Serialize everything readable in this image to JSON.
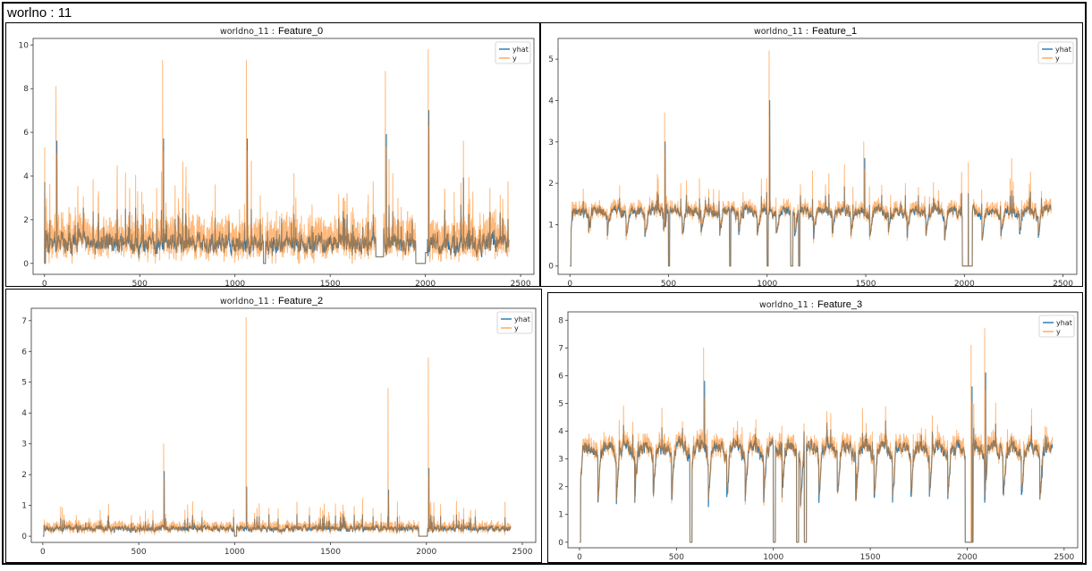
{
  "page": {
    "title": "worlno : 11"
  },
  "colors": {
    "yhat": "#1f77b4",
    "y": "#ff7f0e",
    "blend": "#8c7660"
  },
  "chart_data": [
    {
      "type": "line",
      "title_prefix": "worldno_11 :",
      "title_feature": "Feature_0",
      "xlim": [
        -60,
        2570
      ],
      "ylim": [
        -0.5,
        10.3
      ],
      "x_ticks": [
        "0",
        "500",
        "1000",
        "1500",
        "2000",
        "2500"
      ],
      "x_tick_values": [
        0,
        500,
        1000,
        1500,
        2000,
        2500
      ],
      "y_ticks": [
        "0",
        "2",
        "4",
        "6",
        "8",
        "10"
      ],
      "y_tick_values": [
        0,
        2,
        4,
        6,
        8,
        10
      ],
      "legend": [
        "yhat",
        "y"
      ],
      "legend_loc": "upper right",
      "n_points": 2440,
      "profile": {
        "base": 0.9,
        "noise": 0.9,
        "y_extra": 0.8,
        "spike_prob": 0.05,
        "spike_scale": 3.0,
        "dips": [
          [
            2000,
            2010,
            0.5
          ],
          [
            1150,
            1160,
            0
          ],
          [
            1740,
            1780,
            0.3
          ]
        ],
        "flat_zero": [
          [
            0,
            5
          ],
          [
            1950,
            2000
          ]
        ],
        "peaks": [
          [
            1,
            5.3
          ],
          [
            60,
            8.1
          ],
          [
            65,
            5.6
          ],
          [
            620,
            9.3
          ],
          [
            625,
            5.7
          ],
          [
            1060,
            9.3
          ],
          [
            1065,
            5.7
          ],
          [
            1790,
            8.8
          ],
          [
            1795,
            5.9
          ],
          [
            2015,
            9.8
          ],
          [
            2018,
            7.0
          ],
          [
            2200,
            5.6
          ]
        ],
        "seed": 11
      }
    },
    {
      "type": "line",
      "title_prefix": "worldno_11 :",
      "title_feature": "Feature_1",
      "xlim": [
        -60,
        2570
      ],
      "ylim": [
        -0.2,
        5.5
      ],
      "x_ticks": [
        "0",
        "500",
        "1000",
        "1500",
        "2000",
        "2500"
      ],
      "x_tick_values": [
        0,
        500,
        1000,
        1500,
        2000,
        2500
      ],
      "y_ticks": [
        "0",
        "1",
        "2",
        "3",
        "4",
        "5"
      ],
      "y_tick_values": [
        0,
        1,
        2,
        3,
        4,
        5
      ],
      "legend": [
        "yhat",
        "y"
      ],
      "legend_loc": "upper right",
      "n_points": 2440,
      "profile": {
        "base": 1.2,
        "noise": 0.25,
        "y_extra": 0.15,
        "spike_prob": 0.02,
        "spike_scale": 0.8,
        "periodic": 0.5,
        "period": 95,
        "dips": [
          [
            500,
            505,
            0
          ],
          [
            810,
            815,
            0
          ],
          [
            1000,
            1005,
            0
          ],
          [
            1120,
            1130,
            0
          ],
          [
            1160,
            1165,
            0
          ]
        ],
        "flat_zero": [
          [
            0,
            5
          ],
          [
            1990,
            2040
          ]
        ],
        "peaks": [
          [
            480,
            3.7
          ],
          [
            483,
            3.0
          ],
          [
            1010,
            5.2
          ],
          [
            1013,
            4.0
          ],
          [
            1230,
            2.3
          ],
          [
            1490,
            3.0
          ],
          [
            1495,
            2.6
          ],
          [
            2020,
            2.5
          ],
          [
            2240,
            2.6
          ]
        ],
        "seed": 21
      }
    },
    {
      "type": "line",
      "title_prefix": "worldno_11 :",
      "title_feature": "Feature_2",
      "xlim": [
        -60,
        2570
      ],
      "ylim": [
        -0.2,
        7.4
      ],
      "x_ticks": [
        "0",
        "500",
        "1000",
        "1500",
        "2000",
        "2500"
      ],
      "x_tick_values": [
        0,
        500,
        1000,
        1500,
        2000,
        2500
      ],
      "y_ticks": [
        "0",
        "1",
        "2",
        "3",
        "4",
        "5",
        "6",
        "7"
      ],
      "y_tick_values": [
        0,
        1,
        2,
        3,
        4,
        5,
        6,
        7
      ],
      "legend": [
        "yhat",
        "y"
      ],
      "legend_loc": "upper right",
      "n_points": 2440,
      "profile": {
        "base": 0.25,
        "noise": 0.2,
        "y_extra": 0.15,
        "spike_prob": 0.04,
        "spike_scale": 0.8,
        "dips": [
          [
            1000,
            1010,
            0
          ]
        ],
        "flat_zero": [
          [
            0,
            5
          ],
          [
            1960,
            2005
          ]
        ],
        "peaks": [
          [
            630,
            3.0
          ],
          [
            633,
            2.1
          ],
          [
            1060,
            7.1
          ],
          [
            1063,
            1.6
          ],
          [
            1800,
            4.8
          ],
          [
            1803,
            1.5
          ],
          [
            2010,
            5.8
          ],
          [
            2013,
            2.2
          ]
        ],
        "seed": 31
      }
    },
    {
      "type": "line",
      "title_prefix": "worldno_11 :",
      "title_feature": "Feature_3",
      "xlim": [
        -60,
        2570
      ],
      "ylim": [
        -0.2,
        8.3
      ],
      "x_ticks": [
        "0",
        "500",
        "1000",
        "1500",
        "2000",
        "2500"
      ],
      "x_tick_values": [
        0,
        500,
        1000,
        1500,
        2000,
        2500
      ],
      "y_ticks": [
        "0",
        "1",
        "2",
        "3",
        "4",
        "5",
        "6",
        "7",
        "8"
      ],
      "y_tick_values": [
        0,
        1,
        2,
        3,
        4,
        5,
        6,
        7,
        8
      ],
      "legend": [
        "yhat",
        "y"
      ],
      "legend_loc": "upper right",
      "n_points": 2440,
      "profile": {
        "base": 3.0,
        "noise": 0.5,
        "y_extra": 0.3,
        "spike_prob": 0.03,
        "spike_scale": 1.3,
        "periodic": 1.6,
        "period": 95,
        "dips": [
          [
            570,
            580,
            0
          ],
          [
            1000,
            1010,
            0
          ],
          [
            1120,
            1130,
            0
          ],
          [
            1160,
            1170,
            0
          ]
        ],
        "flat_zero": [
          [
            0,
            5
          ],
          [
            1990,
            2030
          ]
        ],
        "peaks": [
          [
            640,
            7.0
          ],
          [
            645,
            5.8
          ],
          [
            2020,
            7.1
          ],
          [
            2025,
            5.6
          ],
          [
            2090,
            7.7
          ],
          [
            2095,
            6.1
          ]
        ],
        "seed": 41
      }
    }
  ]
}
